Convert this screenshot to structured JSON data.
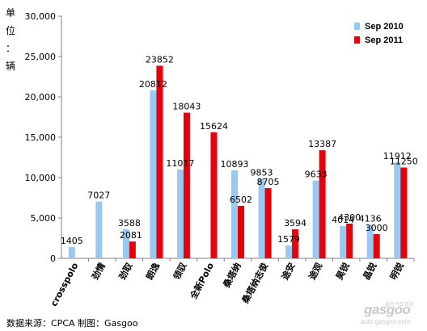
{
  "chart_data": {
    "type": "bar",
    "categories": [
      "crosspolo",
      "劲情",
      "劲取",
      "朗逸",
      "领驭",
      "全新Polo",
      "桑塔纳",
      "桑塔纳志俊",
      "途安",
      "途观",
      "昊锐",
      "晶锐",
      "明锐"
    ],
    "series": [
      {
        "name": "Sep 2010",
        "color": "#99c8f0",
        "values": [
          1405,
          7027,
          3588,
          20812,
          11017,
          null,
          10893,
          9853,
          1579,
          9633,
          4014,
          4136,
          11912
        ]
      },
      {
        "name": "Sep 2011",
        "color": "#e8000b",
        "values": [
          null,
          null,
          2081,
          23852,
          18043,
          15624,
          6502,
          8705,
          3594,
          13387,
          4300,
          3000,
          11250
        ]
      }
    ],
    "ylim": [
      0,
      30000
    ],
    "yticks": [
      "0",
      "5,000",
      "10,000",
      "15,000",
      "20,000",
      "25,000",
      "30,000"
    ],
    "ylabel": "单位：辆",
    "legend_position": "top-right",
    "grid": false
  },
  "source": "数据来源：CPCA  制图：Gasgoo",
  "logo": {
    "name": "gasgoo",
    "cn_text": "盖世汽车资讯",
    "url": "auto.gasgoo.com"
  }
}
